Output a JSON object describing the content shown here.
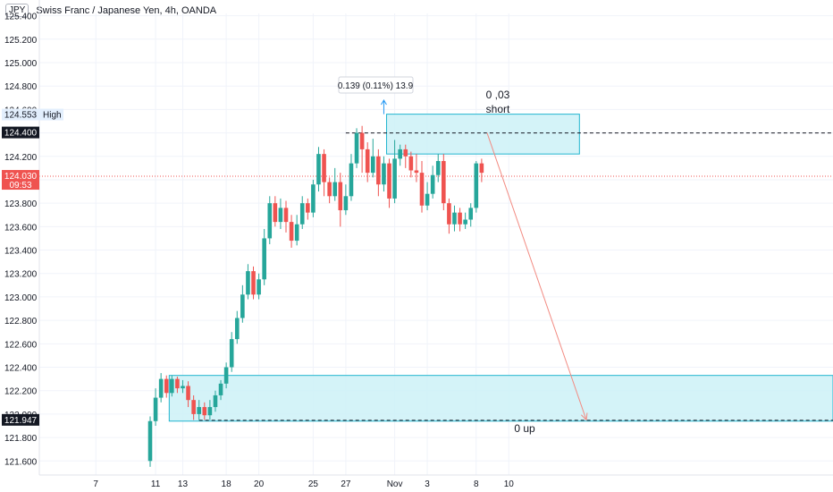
{
  "header": {
    "currency": "JPY",
    "symbol_title": "Swiss Franc / Japanese Yen, 4h, OANDA"
  },
  "chart_data": {
    "type": "candlestick",
    "yticks": [
      "125.400",
      "125.200",
      "125.000",
      "124.800",
      "124.600",
      "124.400",
      "124.200",
      "124.000",
      "123.800",
      "123.600",
      "123.400",
      "123.200",
      "123.000",
      "122.800",
      "122.600",
      "122.400",
      "122.200",
      "122.000",
      "121.800",
      "121.600"
    ],
    "xticks": [
      {
        "label": "7",
        "bar": -10
      },
      {
        "label": "11",
        "bar": 1
      },
      {
        "label": "13",
        "bar": 6
      },
      {
        "label": "18",
        "bar": 14
      },
      {
        "label": "20",
        "bar": 20
      },
      {
        "label": "25",
        "bar": 30
      },
      {
        "label": "27",
        "bar": 36
      },
      {
        "label": "Nov",
        "bar": 45
      },
      {
        "label": "3",
        "bar": 51
      },
      {
        "label": "8",
        "bar": 60
      },
      {
        "label": "10",
        "bar": 66
      }
    ],
    "ylim": [
      121.48,
      125.42
    ],
    "price_labels": {
      "high_value": "124.553",
      "high_text": "High",
      "level_value": "124.400",
      "current_value": "124.030",
      "current_time": "09:53",
      "low_value": "121.947"
    },
    "candles": [
      [
        121.6,
        121.94,
        121.55,
        121.98
      ],
      [
        121.94,
        122.14,
        121.9,
        122.22
      ],
      [
        122.14,
        122.3,
        122.1,
        122.35
      ],
      [
        122.3,
        122.18,
        122.14,
        122.33
      ],
      [
        122.18,
        122.3,
        122.15,
        122.33
      ],
      [
        122.3,
        122.22,
        122.18,
        122.32
      ],
      [
        122.22,
        122.24,
        122.18,
        122.29
      ],
      [
        122.24,
        122.12,
        122.06,
        122.28
      ],
      [
        122.12,
        122.0,
        121.95,
        122.16
      ],
      [
        122.0,
        122.06,
        121.95,
        122.12
      ],
      [
        122.06,
        121.99,
        121.95,
        122.1
      ],
      [
        121.99,
        122.06,
        121.95,
        122.12
      ],
      [
        122.06,
        122.16,
        122.02,
        122.2
      ],
      [
        122.16,
        122.26,
        122.12,
        122.29
      ],
      [
        122.26,
        122.4,
        122.22,
        122.44
      ],
      [
        122.4,
        122.64,
        122.36,
        122.7
      ],
      [
        122.64,
        122.82,
        122.6,
        122.88
      ],
      [
        122.82,
        123.02,
        122.78,
        123.1
      ],
      [
        123.02,
        123.22,
        122.98,
        123.28
      ],
      [
        123.22,
        123.02,
        122.98,
        123.26
      ],
      [
        123.02,
        123.15,
        122.98,
        123.2
      ],
      [
        123.15,
        123.5,
        123.1,
        123.58
      ],
      [
        123.5,
        123.8,
        123.45,
        123.86
      ],
      [
        123.8,
        123.64,
        123.6,
        123.86
      ],
      [
        123.64,
        123.76,
        123.58,
        123.84
      ],
      [
        123.76,
        123.64,
        123.55,
        123.82
      ],
      [
        123.64,
        123.48,
        123.42,
        123.7
      ],
      [
        123.48,
        123.62,
        123.44,
        123.7
      ],
      [
        123.62,
        123.8,
        123.58,
        123.86
      ],
      [
        123.8,
        123.72,
        123.66,
        123.84
      ],
      [
        123.72,
        123.96,
        123.68,
        124.0
      ],
      [
        123.96,
        124.22,
        123.9,
        124.28
      ],
      [
        124.22,
        123.98,
        123.86,
        124.26
      ],
      [
        123.98,
        123.86,
        123.8,
        124.02
      ],
      [
        123.86,
        123.98,
        123.82,
        124.1
      ],
      [
        123.98,
        123.74,
        123.6,
        124.06
      ],
      [
        123.74,
        123.86,
        123.7,
        123.96
      ],
      [
        123.86,
        124.14,
        123.82,
        124.22
      ],
      [
        124.14,
        124.4,
        124.1,
        124.44
      ],
      [
        124.4,
        124.26,
        124.06,
        124.46
      ],
      [
        124.26,
        124.06,
        123.98,
        124.32
      ],
      [
        124.06,
        124.2,
        124.02,
        124.35
      ],
      [
        124.2,
        123.96,
        123.86,
        124.26
      ],
      [
        123.96,
        124.14,
        123.9,
        124.2
      ],
      [
        124.14,
        123.84,
        123.76,
        124.18
      ],
      [
        123.84,
        124.18,
        123.8,
        124.34
      ],
      [
        124.18,
        124.26,
        124.12,
        124.3
      ],
      [
        124.26,
        124.2,
        124.1,
        124.3
      ],
      [
        124.2,
        124.08,
        124.02,
        124.24
      ],
      [
        124.08,
        124.06,
        123.98,
        124.22
      ],
      [
        124.06,
        123.78,
        123.72,
        124.16
      ],
      [
        123.78,
        123.88,
        123.74,
        123.98
      ],
      [
        123.88,
        124.04,
        123.84,
        124.12
      ],
      [
        124.04,
        124.16,
        123.98,
        124.22
      ],
      [
        124.16,
        123.8,
        123.74,
        124.22
      ],
      [
        123.8,
        123.62,
        123.54,
        123.84
      ],
      [
        123.62,
        123.72,
        123.56,
        123.78
      ],
      [
        123.72,
        123.62,
        123.56,
        123.76
      ],
      [
        123.62,
        123.66,
        123.58,
        123.72
      ],
      [
        123.66,
        123.76,
        123.6,
        123.8
      ],
      [
        123.76,
        124.14,
        123.72,
        124.16
      ],
      [
        124.14,
        124.06,
        123.98,
        124.18
      ]
    ],
    "zones": [
      {
        "name": "supply-zone",
        "x_from_bar": 44,
        "x_to_bar": 79,
        "y_top": 124.56,
        "y_bottom": 124.22
      },
      {
        "name": "demand-zone",
        "x_from_bar": 4,
        "x_to_bar": 130,
        "y_top": 122.33,
        "y_bottom": 121.94
      }
    ],
    "annotations": {
      "measure_tooltip": "0.139 (0.11%) 13.9",
      "target_top": "0 ,03",
      "short_label": "short",
      "bottom_label": "0 up"
    },
    "colors": {
      "up": "#26a69a",
      "down": "#ef5350",
      "zone_fill": "#cdf1f7",
      "zone_stroke": "#22b5cf",
      "current": "#ef5350",
      "level": "#131722"
    }
  }
}
